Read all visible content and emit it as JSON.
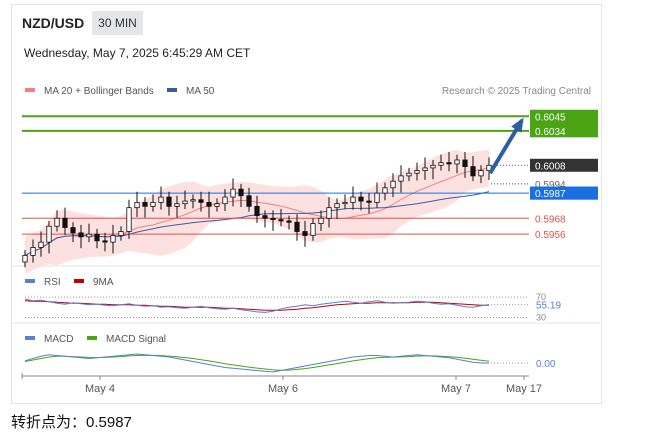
{
  "header": {
    "pair": "NZD/USD",
    "timeframe": "30 MIN",
    "datetime": "Wednesday, May 7, 2025 6:45:29 AM CET"
  },
  "footer": {
    "text": "转折点为：0.5987"
  },
  "colors": {
    "bollinger": "#f08080",
    "bollinger_band": "#fde0e0",
    "ma50": "#3a5ea0",
    "resistance": "#4aa414",
    "support": "#d9534f",
    "pivot": "#1a6fe0",
    "price_tag": "#333333",
    "arrow": "#2c5ea0",
    "rsi": "#5a7fd4",
    "rsi_ma": "#c00000",
    "macd": "#5a7fd4",
    "macd_signal": "#4aa414"
  },
  "chart_data": [
    {
      "type": "candlestick",
      "legend": [
        {
          "name": "MA 20 + Bollinger Bands",
          "color": "#f08080"
        },
        {
          "name": "MA 50",
          "color": "#3a5ea0"
        }
      ],
      "legend_placement": "top-left",
      "credit": "Research © 2025 Trading Central",
      "x_ticks": [
        "May 4",
        "May 6",
        "May 7",
        "May 17"
      ],
      "ylim": [
        0.5935,
        0.6055
      ],
      "current_price": {
        "label": "0.6008",
        "value": 0.6008
      },
      "hidden_label": {
        "label": "0.5994",
        "value": 0.5994
      },
      "levels": [
        {
          "label": "0.6045",
          "value": 0.6045,
          "kind": "resistance"
        },
        {
          "label": "0.6034",
          "value": 0.6034,
          "kind": "resistance"
        },
        {
          "label": "0.5987",
          "value": 0.5987,
          "kind": "pivot"
        },
        {
          "label": "0.5968",
          "value": 0.5968,
          "kind": "support"
        },
        {
          "label": "0.5956",
          "value": 0.5956,
          "kind": "support"
        }
      ],
      "forecast_arrow": {
        "from": 0.6002,
        "to": 0.6042
      },
      "close_series": [
        0.594,
        0.5946,
        0.595,
        0.5962,
        0.5968,
        0.5961,
        0.5957,
        0.5954,
        0.5956,
        0.5951,
        0.595,
        0.5955,
        0.5958,
        0.5976,
        0.598,
        0.5977,
        0.598,
        0.5984,
        0.5977,
        0.5979,
        0.5981,
        0.5982,
        0.598,
        0.5977,
        0.5979,
        0.5984,
        0.599,
        0.5985,
        0.5977,
        0.597,
        0.5968,
        0.5967,
        0.5966,
        0.5965,
        0.5958,
        0.5955,
        0.5964,
        0.5968,
        0.5976,
        0.5979,
        0.598,
        0.5984,
        0.5981,
        0.598,
        0.5987,
        0.5991,
        0.5996,
        0.6,
        0.6002,
        0.6004,
        0.6006,
        0.6008,
        0.601,
        0.6009,
        0.6012,
        0.6007,
        0.6,
        0.6004,
        0.6008
      ]
    },
    {
      "type": "line",
      "legend": [
        {
          "name": "RSI",
          "color": "#5a7fd4"
        },
        {
          "name": "9MA",
          "color": "#c00000"
        }
      ],
      "levels": [
        {
          "label": "70",
          "value": 70
        },
        {
          "label": "30",
          "value": 30
        }
      ],
      "ylim": [
        25,
        80
      ],
      "current": {
        "label": "55.19",
        "value": 55.19
      },
      "rsi": [
        66,
        63,
        64,
        61,
        58,
        56,
        59,
        57,
        55,
        56,
        54,
        53,
        55,
        57,
        54,
        52,
        53,
        50,
        51,
        49,
        48,
        50,
        52,
        49,
        47,
        46,
        48,
        45,
        43,
        41,
        40,
        42,
        47,
        50,
        52,
        55,
        53,
        56,
        58,
        60,
        62,
        60,
        58,
        61,
        63,
        60,
        58,
        59,
        60,
        62,
        61,
        58,
        56,
        57,
        54,
        51,
        50,
        53,
        55.19
      ],
      "ma9": [
        63,
        62,
        62,
        61,
        60,
        59,
        58,
        58,
        57,
        56,
        56,
        55,
        55,
        55,
        54,
        54,
        53,
        52,
        52,
        51,
        50,
        50,
        50,
        50,
        49,
        48,
        48,
        47,
        46,
        45,
        44,
        44,
        44,
        45,
        46,
        48,
        49,
        51,
        53,
        55,
        56,
        57,
        58,
        58,
        59,
        59,
        59,
        59,
        59,
        60,
        60,
        60,
        59,
        58,
        57,
        56,
        55,
        54,
        54
      ]
    },
    {
      "type": "line",
      "legend": [
        {
          "name": "MACD",
          "color": "#5a7fd4"
        },
        {
          "name": "MACD Signal",
          "color": "#4aa414"
        }
      ],
      "zero_label": "0.00",
      "ylim": [
        -1.0,
        1.0
      ],
      "macd": [
        0.15,
        0.3,
        0.45,
        0.55,
        0.5,
        0.45,
        0.4,
        0.35,
        0.3,
        0.35,
        0.4,
        0.45,
        0.5,
        0.55,
        0.6,
        0.55,
        0.5,
        0.45,
        0.4,
        0.3,
        0.2,
        0.1,
        0.0,
        -0.1,
        -0.2,
        -0.3,
        -0.35,
        -0.4,
        -0.45,
        -0.5,
        -0.55,
        -0.6,
        -0.5,
        -0.4,
        -0.3,
        -0.2,
        -0.1,
        0.0,
        0.1,
        0.2,
        0.3,
        0.4,
        0.45,
        0.5,
        0.5,
        0.45,
        0.4,
        0.45,
        0.5,
        0.55,
        0.5,
        0.45,
        0.4,
        0.35,
        0.25,
        0.15,
        0.05,
        0.0,
        0.0
      ],
      "signal": [
        0.1,
        0.2,
        0.3,
        0.4,
        0.45,
        0.45,
        0.43,
        0.4,
        0.37,
        0.36,
        0.37,
        0.4,
        0.43,
        0.47,
        0.5,
        0.52,
        0.51,
        0.49,
        0.46,
        0.42,
        0.36,
        0.3,
        0.22,
        0.14,
        0.05,
        -0.05,
        -0.13,
        -0.2,
        -0.27,
        -0.34,
        -0.4,
        -0.46,
        -0.48,
        -0.47,
        -0.43,
        -0.37,
        -0.3,
        -0.22,
        -0.13,
        -0.04,
        0.05,
        0.14,
        0.22,
        0.29,
        0.35,
        0.38,
        0.39,
        0.41,
        0.43,
        0.46,
        0.47,
        0.47,
        0.45,
        0.42,
        0.38,
        0.32,
        0.25,
        0.18,
        0.12
      ]
    }
  ]
}
